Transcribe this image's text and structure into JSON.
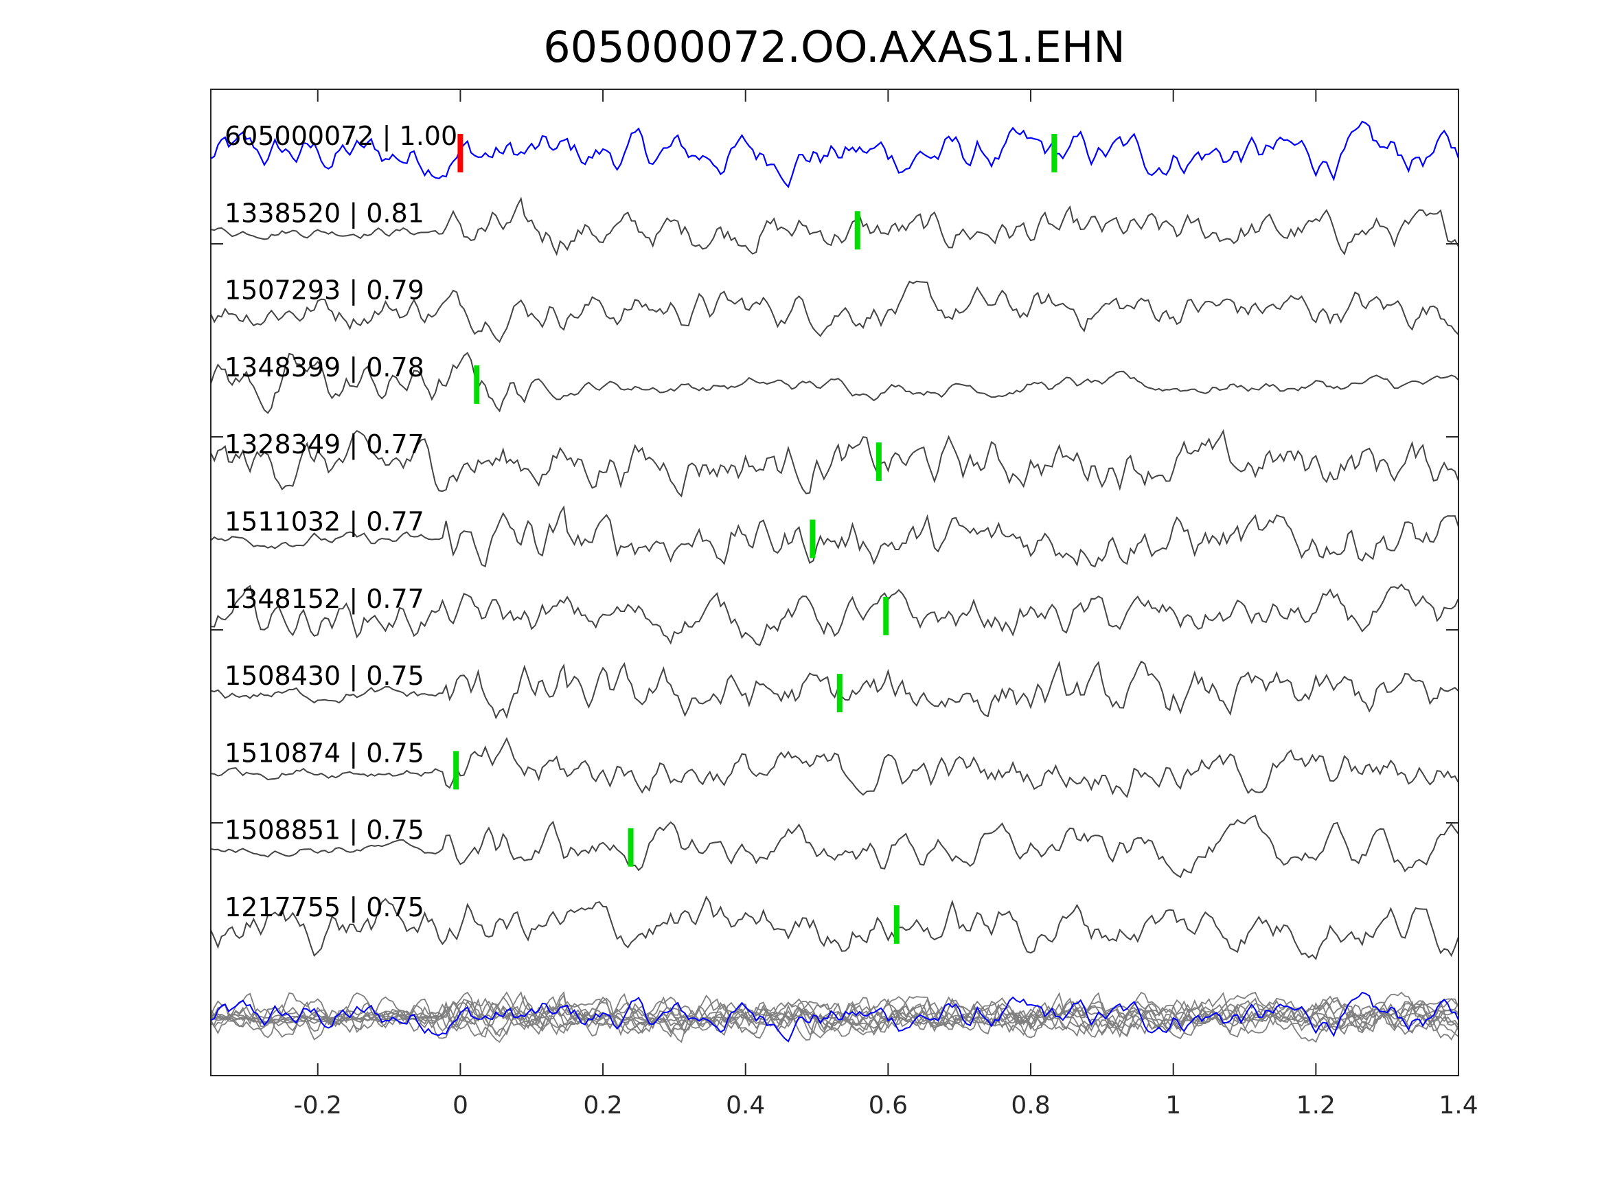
{
  "chart_data": {
    "type": "line",
    "title": "605000072.OO.AXAS1.EHN",
    "xlabel": "",
    "ylabel": "",
    "xlim": [
      -0.35,
      1.4
    ],
    "xticks": [
      -0.2,
      0,
      0.2,
      0.4,
      0.6,
      0.8,
      1,
      1.2,
      1.4
    ],
    "xtick_labels": [
      "-0.2",
      "0",
      "0.2",
      "0.4",
      "0.6",
      "0.8",
      "1",
      "1.2",
      "1.4"
    ],
    "grid": false,
    "colors": {
      "template": "#0000ff",
      "neighbor": "#444444",
      "stack": "#808080",
      "reference_pick": "#ff0000",
      "pick": "#00dd00"
    },
    "traces": [
      {
        "label": "605000072 | 1.00",
        "id": "605000072",
        "cc": 1.0,
        "template": true,
        "pick_time": 0.0,
        "pick2_time": 0.833
      },
      {
        "label": "1338520 | 0.81",
        "id": "1338520",
        "cc": 0.81,
        "pick_time": 0.557
      },
      {
        "label": "1507293 | 0.79",
        "id": "1507293",
        "cc": 0.79,
        "pick_time": null
      },
      {
        "label": "1348399 | 0.78",
        "id": "1348399",
        "cc": 0.78,
        "pick_time": 0.023
      },
      {
        "label": "1328349 | 0.77",
        "id": "1328349",
        "cc": 0.77,
        "pick_time": 0.587
      },
      {
        "label": "1511032 | 0.77",
        "id": "1511032",
        "cc": 0.77,
        "pick_time": 0.494
      },
      {
        "label": "1348152 | 0.77",
        "id": "1348152",
        "cc": 0.77,
        "pick_time": 0.597
      },
      {
        "label": "1508430 | 0.75",
        "id": "1508430",
        "cc": 0.75,
        "pick_time": 0.532
      },
      {
        "label": "1510874 | 0.75",
        "id": "1510874",
        "cc": 0.75,
        "pick_time": -0.006
      },
      {
        "label": "1508851 | 0.75",
        "id": "1508851",
        "cc": 0.75,
        "pick_time": 0.239
      },
      {
        "label": "1217755 | 0.75",
        "id": "1217755",
        "cc": 0.75,
        "pick_time": 0.612
      }
    ]
  }
}
